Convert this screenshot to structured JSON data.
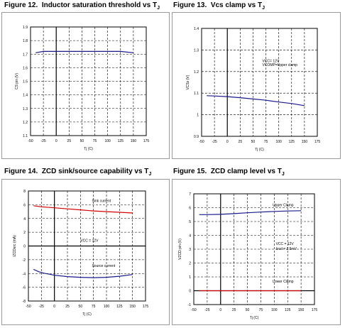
{
  "figures": [
    {
      "title_prefix": "Figure 12.",
      "title_main": "Inductor saturation threshold vs T",
      "title_sub": "J"
    },
    {
      "title_prefix": "Figure 13.",
      "title_main": "Vcs clamp vs T",
      "title_sub": "J"
    },
    {
      "title_prefix": "Figure 14.",
      "title_main": "ZCD sink/source capability vs T",
      "title_sub": "J"
    },
    {
      "title_prefix": "Figure 15.",
      "title_main": "ZCD clamp level vs T",
      "title_sub": "J"
    }
  ],
  "colors": {
    "red": "#d40000",
    "blue": "#1a1a8c",
    "axis": "#000000",
    "grid": "#000000"
  },
  "chart_data": [
    {
      "type": "line",
      "xlabel": "Tj (C)",
      "ylabel": "CS pin (V)",
      "xlim": [
        -50,
        175
      ],
      "ylim": [
        1.1,
        1.9
      ],
      "xticks": [
        -50,
        -25,
        0,
        25,
        50,
        75,
        100,
        125,
        150,
        175
      ],
      "yticks": [
        1.1,
        1.2,
        1.3,
        1.4,
        1.5,
        1.6,
        1.7,
        1.8,
        1.9
      ],
      "xtick_labels": [
        "-50",
        "-25",
        "0",
        "25",
        "50",
        "75",
        "100",
        "125",
        "150",
        "175"
      ],
      "ytick_labels": [
        "1.1",
        "1.2",
        "1.3",
        "1.4",
        "1.5",
        "1.6",
        "1.7",
        "1.8",
        "1.9"
      ],
      "grid": "dashed",
      "annotations": [],
      "series": [
        {
          "color": "blue",
          "x": [
            -40,
            -25,
            0,
            25,
            50,
            75,
            100,
            125,
            150
          ],
          "y": [
            1.71,
            1.72,
            1.72,
            1.72,
            1.72,
            1.72,
            1.72,
            1.72,
            1.71
          ]
        }
      ]
    },
    {
      "type": "line",
      "xlabel": "Tj (C)",
      "ylabel": "VCSx (V)",
      "xlim": [
        -50,
        175
      ],
      "ylim": [
        0.9,
        1.4
      ],
      "xticks": [
        -50,
        -25,
        0,
        25,
        50,
        75,
        100,
        125,
        150,
        175
      ],
      "yticks": [
        0.9,
        1.0,
        1.1,
        1.2,
        1.3,
        1.4
      ],
      "xtick_labels": [
        "-50",
        "-25",
        "0",
        "25",
        "50",
        "75",
        "100",
        "125",
        "150",
        "175"
      ],
      "ytick_labels": [
        "0.9",
        "1",
        "1.1",
        "1.2",
        "1.3",
        "1.4"
      ],
      "grid": "dashed",
      "annotations": [
        {
          "text": "VCC= 12V",
          "x": 68,
          "y": 1.243
        },
        {
          "text": "VCOMP=Upper clamp",
          "x": 68,
          "y": 1.226
        }
      ],
      "series": [
        {
          "color": "blue",
          "x": [
            -40,
            -25,
            0,
            25,
            50,
            75,
            100,
            125,
            150
          ],
          "y": [
            1.088,
            1.087,
            1.084,
            1.079,
            1.073,
            1.067,
            1.059,
            1.052,
            1.042
          ]
        }
      ]
    },
    {
      "type": "line",
      "xlabel": "Tj (C)",
      "ylabel": "IZCDsrc (mA)",
      "xlim": [
        -50,
        175
      ],
      "ylim": [
        -8,
        8
      ],
      "xticks": [
        -50,
        -25,
        0,
        25,
        50,
        75,
        100,
        125,
        150,
        175
      ],
      "yticks": [
        -8,
        -6,
        -4,
        -2,
        0,
        2,
        4,
        6,
        8
      ],
      "xtick_labels": [
        "-50",
        "-25",
        "0",
        "25",
        "50",
        "75",
        "100",
        "125",
        "150",
        "175"
      ],
      "ytick_labels": [
        "-8",
        "-6",
        "-4",
        "-2",
        "0",
        "2",
        "4",
        "6",
        "8"
      ],
      "grid": "dashed",
      "annotations": [
        {
          "text": "Sink current",
          "x": 72,
          "y": 6.4
        },
        {
          "text": "VCC = 12V",
          "x": 50,
          "y": 0.6
        },
        {
          "text": "Source current",
          "x": 72,
          "y": -3.05
        }
      ],
      "series": [
        {
          "color": "red",
          "x": [
            -40,
            -25,
            0,
            25,
            50,
            75,
            100,
            125,
            150
          ],
          "y": [
            5.85,
            5.7,
            5.55,
            5.4,
            5.25,
            5.1,
            5.0,
            4.9,
            4.8
          ]
        },
        {
          "color": "blue",
          "x": [
            -40,
            -30,
            -20,
            -10,
            0,
            25,
            50,
            75,
            100,
            125,
            150
          ],
          "y": [
            -3.4,
            -3.75,
            -3.95,
            -4.1,
            -4.25,
            -4.45,
            -4.55,
            -4.6,
            -4.55,
            -4.4,
            -4.15
          ]
        }
      ]
    },
    {
      "type": "line",
      "xlabel": "Tj (C)",
      "ylabel": "VZCD pin (V)",
      "xlim": [
        -50,
        175
      ],
      "ylim": [
        -1,
        7
      ],
      "xticks": [
        -50,
        -25,
        0,
        25,
        50,
        75,
        100,
        125,
        150,
        175
      ],
      "yticks": [
        -1,
        0,
        1,
        2,
        3,
        4,
        5,
        6,
        7
      ],
      "xtick_labels": [
        "-50",
        "-25",
        "0",
        "25",
        "50",
        "75",
        "100",
        "125",
        "150",
        "175"
      ],
      "ytick_labels": [
        "-1",
        "0",
        "1",
        "2",
        "3",
        "4",
        "5",
        "6",
        "7"
      ],
      "grid": "dashed",
      "annotations": [
        {
          "text": "Upper Clamp",
          "x": 97,
          "y": 6.1
        },
        {
          "text": "VCC = 12V",
          "x": 103,
          "y": 3.3
        },
        {
          "text": "Izcd = 2.5mV",
          "x": 103,
          "y": 2.95
        },
        {
          "text": "Lower Clamp",
          "x": 97,
          "y": 0.6
        }
      ],
      "series": [
        {
          "color": "blue",
          "x": [
            -40,
            -25,
            0,
            25,
            50,
            75,
            100,
            125,
            150
          ],
          "y": [
            5.5,
            5.5,
            5.52,
            5.57,
            5.63,
            5.68,
            5.73,
            5.76,
            5.78
          ]
        },
        {
          "color": "red",
          "x": [
            -40,
            -25,
            0,
            25,
            50,
            75,
            100,
            125,
            150
          ],
          "y": [
            0.0,
            0.0,
            0.0,
            0.0,
            0.0,
            0.0,
            0.0,
            0.0,
            0.0
          ]
        }
      ]
    }
  ]
}
